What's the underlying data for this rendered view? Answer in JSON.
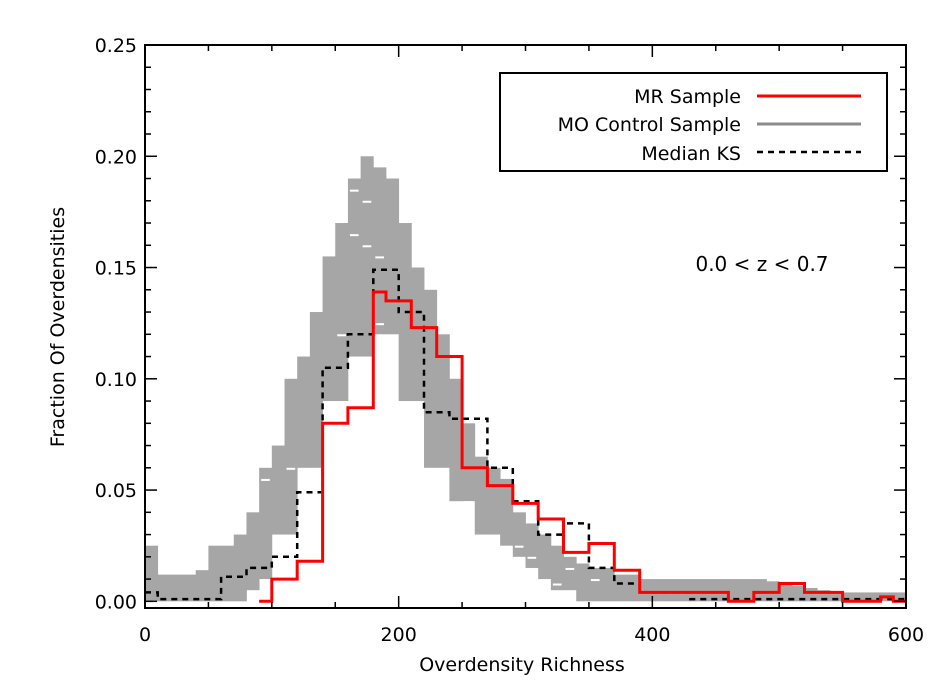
{
  "chart_data": {
    "type": "line",
    "title": "",
    "xlabel": "Overdensity Richness",
    "ylabel": "Fraction Of Overdensities",
    "xlim": [
      0,
      600
    ],
    "ylim": [
      -0.003,
      0.25
    ],
    "xticks": [
      0,
      200,
      400,
      600
    ],
    "xtick_labels": [
      "0",
      "200",
      "400",
      "600"
    ],
    "yticks": [
      0.0,
      0.05,
      0.1,
      0.15,
      0.2,
      0.25
    ],
    "ytick_labels": [
      "0.00",
      "0.05",
      "0.10",
      "0.15",
      "0.20",
      "0.25"
    ],
    "annotation": "0.0 < z < 0.7",
    "legend": {
      "position": "top-right",
      "entries": [
        {
          "label": "MR Sample",
          "color": "#ff0000",
          "style": "solid"
        },
        {
          "label": "MO Control Sample",
          "color": "#8c8c8c",
          "style": "solid"
        },
        {
          "label": "Median KS",
          "color": "#000000",
          "style": "dashed"
        }
      ]
    },
    "bin_edges": [
      0,
      10,
      20,
      30,
      40,
      50,
      60,
      70,
      80,
      90,
      100,
      110,
      120,
      130,
      140,
      150,
      160,
      170,
      180,
      190,
      200,
      210,
      220,
      230,
      240,
      250,
      260,
      270,
      280,
      290,
      300,
      310,
      320,
      330,
      340,
      350,
      360,
      370,
      380,
      390,
      400,
      410,
      420,
      430,
      440,
      450,
      460,
      470,
      480,
      490,
      500,
      510,
      520,
      530,
      540,
      550,
      560,
      570,
      580,
      590,
      600
    ],
    "series": [
      {
        "name": "MR Sample",
        "color": "#ff0000",
        "values": [
          0,
          0,
          0,
          0,
          0,
          0,
          0,
          0,
          0,
          0.0,
          0.01,
          0.01,
          0.018,
          0.018,
          0.08,
          0.08,
          0.087,
          0.087,
          0.139,
          0.135,
          0.135,
          0.123,
          0.123,
          0.11,
          0.11,
          0.06,
          0.06,
          0.052,
          0.052,
          0.044,
          0.044,
          0.037,
          0.037,
          0.022,
          0.022,
          0.026,
          0.026,
          0.014,
          0.014,
          0.004,
          0.004,
          0.004,
          0.004,
          0.004,
          0.004,
          0.004,
          0.0,
          0.0,
          0.004,
          0.004,
          0.008,
          0.008,
          0.004,
          0.004,
          0.004,
          0.0,
          0.0,
          0.0,
          0.002,
          0.0
        ]
      },
      {
        "name": "Median KS",
        "color": "#000000",
        "values": [
          0.004,
          0.001,
          0.001,
          0.001,
          0.001,
          0.001,
          0.011,
          0.011,
          0.015,
          0.015,
          0.02,
          0.02,
          0.049,
          0.049,
          0.105,
          0.105,
          0.12,
          0.12,
          0.149,
          0.149,
          0.13,
          0.13,
          0.085,
          0.085,
          0.082,
          0.082,
          0.082,
          0.06,
          0.06,
          0.045,
          0.045,
          0.03,
          0.03,
          0.035,
          0.035,
          0.015,
          0.015,
          0.008,
          0.008,
          0.004,
          0.004,
          0.004,
          0.004,
          0.001,
          0.001,
          0.001,
          0.001,
          0.001,
          0.001,
          0.001,
          0.001,
          0.001,
          0.001,
          0.001,
          0.001,
          0.001,
          0.001,
          0.001,
          0.001,
          0.001
        ]
      },
      {
        "name": "MO Control Sample (range)",
        "color": "#a6a6a6",
        "low": [
          0.0,
          0.0,
          0.0,
          0.0,
          0.0,
          0.0,
          0.0,
          0.0,
          0.005,
          0.01,
          0.03,
          0.03,
          0.06,
          0.06,
          0.09,
          0.09,
          0.11,
          0.11,
          0.12,
          0.12,
          0.09,
          0.09,
          0.06,
          0.06,
          0.045,
          0.045,
          0.03,
          0.03,
          0.025,
          0.02,
          0.015,
          0.01,
          0.005,
          0.005,
          0.0,
          0.0,
          0.0,
          0.0,
          0.0,
          0.0,
          0.0,
          0.0,
          0.0,
          0.0,
          0.0,
          0.0,
          0.0,
          0.0,
          0.0,
          0.0,
          0.0,
          0.0,
          0.0,
          0.0,
          0.0,
          0.0,
          0.0,
          0.0,
          0.0,
          0.0
        ],
        "high": [
          0.025,
          0.012,
          0.012,
          0.012,
          0.014,
          0.025,
          0.025,
          0.03,
          0.04,
          0.06,
          0.07,
          0.1,
          0.11,
          0.13,
          0.155,
          0.17,
          0.19,
          0.2,
          0.195,
          0.19,
          0.17,
          0.15,
          0.14,
          0.12,
          0.1,
          0.08,
          0.065,
          0.06,
          0.055,
          0.04,
          0.035,
          0.03,
          0.025,
          0.02,
          0.017,
          0.015,
          0.015,
          0.012,
          0.012,
          0.01,
          0.01,
          0.01,
          0.01,
          0.01,
          0.01,
          0.01,
          0.01,
          0.01,
          0.01,
          0.009,
          0.008,
          0.007,
          0.006,
          0.005,
          0.004,
          0.004,
          0.004,
          0.004,
          0.004,
          0.004
        ]
      }
    ]
  }
}
